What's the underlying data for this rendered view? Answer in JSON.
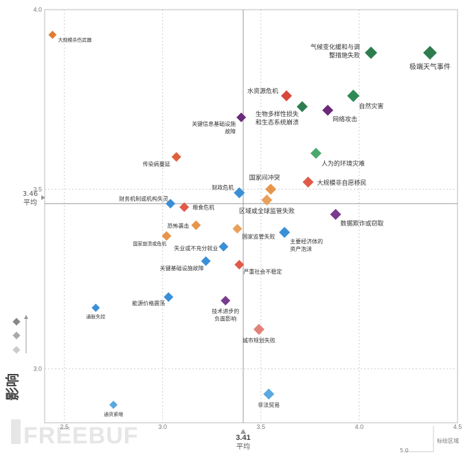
{
  "chart_data": {
    "type": "scatter",
    "title": "",
    "xlabel": "",
    "ylabel": "影响",
    "xlim": [
      2.4,
      4.5
    ],
    "ylim": [
      2.85,
      4.0
    ],
    "x_ticks": [
      "2.5",
      "3.0",
      "3.5",
      "4.0",
      "4.5"
    ],
    "y_ticks": [
      "3.0",
      "3.5",
      "4.0"
    ],
    "x_average": {
      "value": "3.41",
      "label": "平均"
    },
    "y_average": {
      "value": "3.46",
      "label": "平均"
    },
    "legend_note": "标绘区域",
    "legend_value": "5.0",
    "watermark": "FREEBUF",
    "colors": {
      "economic": "#3b8fd6",
      "environmental": "#2e8b57",
      "geopolitical": "#e08a3c",
      "societal": "#d94f3d",
      "technological": "#7a3b8f"
    },
    "points": [
      {
        "label": "大规模杀伤武器",
        "x": 2.44,
        "y": 3.93,
        "color": "#e07b35",
        "size": 6
      },
      {
        "label": "极端天气事件",
        "x": 4.36,
        "y": 3.88,
        "color": "#2e7d4f",
        "size": 10
      },
      {
        "label": "气候变化缓和与调整措施失败",
        "x": 4.06,
        "y": 3.88,
        "color": "#2e7d4f",
        "size": 9
      },
      {
        "label": "水资源危机",
        "x": 3.63,
        "y": 3.76,
        "color": "#d9473a",
        "size": 8
      },
      {
        "label": "自然灾害",
        "x": 3.97,
        "y": 3.76,
        "color": "#2e8b57",
        "size": 9
      },
      {
        "label": "生物多样性损失和生态系统崩溃",
        "x": 3.71,
        "y": 3.73,
        "color": "#2e7d4f",
        "size": 8
      },
      {
        "label": "网络攻击",
        "x": 3.84,
        "y": 3.72,
        "color": "#6b2a7a",
        "size": 8
      },
      {
        "label": "关键信息基础设施故障",
        "x": 3.4,
        "y": 3.7,
        "color": "#6b2a7a",
        "size": 7
      },
      {
        "label": "人为的环境灾难",
        "x": 3.78,
        "y": 3.6,
        "color": "#4aa86a",
        "size": 8
      },
      {
        "label": "传染病蔓延",
        "x": 3.07,
        "y": 3.59,
        "color": "#e0603a",
        "size": 7
      },
      {
        "label": "大规模非自愿移民",
        "x": 3.74,
        "y": 3.52,
        "color": "#e05a4a",
        "size": 8
      },
      {
        "label": "国家间冲突",
        "x": 3.55,
        "y": 3.5,
        "color": "#e8954a",
        "size": 8
      },
      {
        "label": "财政危机",
        "x": 3.39,
        "y": 3.49,
        "color": "#3b8fd6",
        "size": 8
      },
      {
        "label": "区域或全球监管失败",
        "x": 3.53,
        "y": 3.47,
        "color": "#e8a05a",
        "size": 8
      },
      {
        "label": "财务机制或机构失灵",
        "x": 3.04,
        "y": 3.46,
        "color": "#3b8fd6",
        "size": 7
      },
      {
        "label": "粮食危机",
        "x": 3.11,
        "y": 3.45,
        "color": "#e05a4a",
        "size": 7
      },
      {
        "label": "数据欺诈或窃取",
        "x": 3.88,
        "y": 3.43,
        "color": "#7a3b8f",
        "size": 8
      },
      {
        "label": "恐怖袭击",
        "x": 3.17,
        "y": 3.4,
        "color": "#e8954a",
        "size": 7
      },
      {
        "label": "国家监管失败",
        "x": 3.38,
        "y": 3.39,
        "color": "#e8a05a",
        "size": 7
      },
      {
        "label": "主要经济体的资产泡沫",
        "x": 3.62,
        "y": 3.38,
        "color": "#3b8fd6",
        "size": 8
      },
      {
        "label": "国家崩溃或危机",
        "x": 3.02,
        "y": 3.37,
        "color": "#e8954a",
        "size": 7
      },
      {
        "label": "失业或不充分就业",
        "x": 3.31,
        "y": 3.34,
        "color": "#3b8fd6",
        "size": 7
      },
      {
        "label": "关键基础设施故障",
        "x": 3.22,
        "y": 3.3,
        "color": "#3b8fd6",
        "size": 7
      },
      {
        "label": "严重社会不稳定",
        "x": 3.39,
        "y": 3.29,
        "color": "#e05a4a",
        "size": 7
      },
      {
        "label": "能源价格震荡",
        "x": 3.03,
        "y": 3.2,
        "color": "#3b8fd6",
        "size": 7
      },
      {
        "label": "技术进步的负面影响",
        "x": 3.32,
        "y": 3.19,
        "color": "#7a3b8f",
        "size": 7
      },
      {
        "label": "通胀失控",
        "x": 2.66,
        "y": 3.17,
        "color": "#3b8fd6",
        "size": 6
      },
      {
        "label": "城市规划失败",
        "x": 3.49,
        "y": 3.11,
        "color": "#e0837a",
        "size": 8
      },
      {
        "label": "非法贸易",
        "x": 3.54,
        "y": 2.93,
        "color": "#5aa8e0",
        "size": 8
      },
      {
        "label": "通货紧缩",
        "x": 2.75,
        "y": 2.9,
        "color": "#5aa8e0",
        "size": 6
      }
    ],
    "labels": [
      {
        "lines": [
          "大规模杀伤武器"
        ],
        "dx": 8,
        "dy": 10,
        "anchor": "start",
        "fs": 7
      },
      {
        "lines": [
          "极端天气事件"
        ],
        "dx": 0,
        "dy": 24,
        "anchor": "middle",
        "fs": 10
      },
      {
        "lines": [
          "气候变化缓和与调",
          "整措施失败"
        ],
        "dx": -16,
        "dy": -5,
        "anchor": "end",
        "fs": 9
      },
      {
        "lines": [
          "水资源危机"
        ],
        "dx": -12,
        "dy": -4,
        "anchor": "end",
        "fs": 9
      },
      {
        "lines": [
          "自然灾害"
        ],
        "dx": 8,
        "dy": 18,
        "anchor": "start",
        "fs": 9
      },
      {
        "lines": [
          "生物多样性损失",
          "和生态系统崩溃"
        ],
        "dx": -5,
        "dy": 14,
        "anchor": "end",
        "fs": 9
      },
      {
        "lines": [
          "网络攻击"
        ],
        "dx": 7,
        "dy": 16,
        "anchor": "start",
        "fs": 9
      },
      {
        "lines": [
          "关键信息基础设施",
          "故障"
        ],
        "dx": -8,
        "dy": 12,
        "anchor": "end",
        "fs": 8
      },
      {
        "lines": [
          "人为的环境灾难"
        ],
        "dx": 8,
        "dy": 18,
        "anchor": "start",
        "fs": 9
      },
      {
        "lines": [
          "传染病蔓延"
        ],
        "dx": -9,
        "dy": 13,
        "anchor": "end",
        "fs": 8
      },
      {
        "lines": [
          "大规模非自愿移民"
        ],
        "dx": 13,
        "dy": 4,
        "anchor": "start",
        "fs": 9
      },
      {
        "lines": [
          "国家间冲突"
        ],
        "dx": -9,
        "dy": -14,
        "anchor": "middle",
        "fs": 9
      },
      {
        "lines": [
          "财政危机"
        ],
        "dx": -8,
        "dy": -5,
        "anchor": "end",
        "fs": 8
      },
      {
        "lines": [
          "区域或全球监管失败"
        ],
        "dx": 0,
        "dy": 19,
        "anchor": "middle",
        "fs": 9
      },
      {
        "lines": [
          "财务机制或机构失灵"
        ],
        "dx": -3,
        "dy": -4,
        "anchor": "end",
        "fs": 8
      },
      {
        "lines": [
          "粮食危机"
        ],
        "dx": 12,
        "dy": 3,
        "anchor": "start",
        "fs": 8
      },
      {
        "lines": [
          "数据欺诈或窃取"
        ],
        "dx": 7,
        "dy": 16,
        "anchor": "start",
        "fs": 9
      },
      {
        "lines": [
          "恐怖袭击"
        ],
        "dx": -10,
        "dy": 4,
        "anchor": "end",
        "fs": 8
      },
      {
        "lines": [
          "国家监管失败"
        ],
        "dx": 7,
        "dy": 14,
        "anchor": "start",
        "fs": 8
      },
      {
        "lines": [
          "主要经济体的",
          "资产泡沫"
        ],
        "dx": 8,
        "dy": 16,
        "anchor": "start",
        "fs": 8
      },
      {
        "lines": [
          "国家崩溃或危机"
        ],
        "dx": 0,
        "dy": 14,
        "anchor": "end",
        "fs": 7
      },
      {
        "lines": [
          "失业或不充分就业"
        ],
        "dx": -8,
        "dy": 5,
        "anchor": "end",
        "fs": 8
      },
      {
        "lines": [
          "关键基础设施故障"
        ],
        "dx": -3,
        "dy": 13,
        "anchor": "end",
        "fs": 8
      },
      {
        "lines": [
          "严重社会不稳定"
        ],
        "dx": 6,
        "dy": 13,
        "anchor": "start",
        "fs": 8
      },
      {
        "lines": [
          "能源价格震荡"
        ],
        "dx": -5,
        "dy": 12,
        "anchor": "end",
        "fs": 8
      },
      {
        "lines": [
          "技术进步的",
          "负面影响"
        ],
        "dx": 0,
        "dy": 18,
        "anchor": "middle",
        "fs": 8
      },
      {
        "lines": [
          "通胀失控"
        ],
        "dx": 0,
        "dy": 15,
        "anchor": "middle",
        "fs": 7
      },
      {
        "lines": [
          "城市规划失败"
        ],
        "dx": 0,
        "dy": 19,
        "anchor": "middle",
        "fs": 8
      },
      {
        "lines": [
          "非法贸易"
        ],
        "dx": 0,
        "dy": 19,
        "anchor": "middle",
        "fs": 8
      },
      {
        "lines": [
          "通货紧缩"
        ],
        "dx": 0,
        "dy": 16,
        "anchor": "middle",
        "fs": 7
      }
    ]
  }
}
